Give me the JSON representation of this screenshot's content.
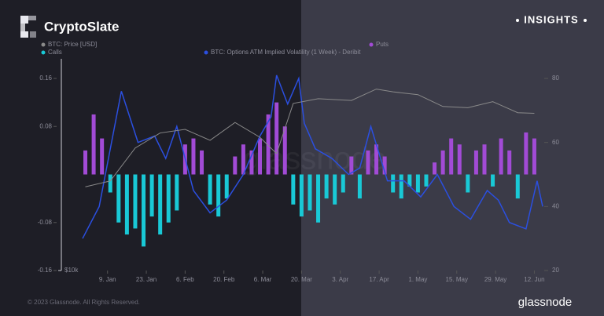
{
  "brand": {
    "name": "CryptoSlate",
    "badge": "INSIGHTS",
    "copyright": "© 2023 Glassnode. All Rights Reserved.",
    "source": "glassnode"
  },
  "chart_data": {
    "type": "bar",
    "x": [
      1,
      4,
      7,
      10,
      13,
      16,
      19,
      22,
      25,
      28,
      31,
      34,
      37,
      40,
      43,
      46,
      49,
      52,
      55,
      58,
      61,
      64,
      67,
      70,
      73,
      76,
      79,
      82,
      85,
      88,
      91,
      94,
      97,
      100,
      103,
      106,
      109,
      112,
      115,
      118,
      121,
      124,
      127,
      130,
      133,
      136,
      139,
      142,
      145,
      148,
      151,
      154,
      157,
      160,
      163
    ],
    "xlim": [
      0,
      166
    ],
    "xticks": [
      {
        "value": 9,
        "label": "9. Jan"
      },
      {
        "value": 23,
        "label": "23. Jan"
      },
      {
        "value": 37,
        "label": "6. Feb"
      },
      {
        "value": 51,
        "label": "20. Feb"
      },
      {
        "value": 65,
        "label": "6. Mar"
      },
      {
        "value": 79,
        "label": "20. Mar"
      },
      {
        "value": 93,
        "label": "3. Apr"
      },
      {
        "value": 107,
        "label": "17. Apr"
      },
      {
        "value": 121,
        "label": "1. May"
      },
      {
        "value": 135,
        "label": "15. May"
      },
      {
        "value": 149,
        "label": "29. May"
      },
      {
        "value": 163,
        "label": "12. Jun"
      }
    ],
    "ylim": [
      -0.16,
      0.16
    ],
    "yticks": [
      -0.16,
      -0.08,
      0.08,
      0.16
    ],
    "y2lim": [
      20,
      80
    ],
    "y2ticks": [
      20,
      40,
      60,
      80
    ],
    "y3lim": [
      10000,
      32000
    ],
    "y3ticks": [
      {
        "value": 10000,
        "label": "$10k"
      }
    ],
    "y3log": true,
    "series": [
      {
        "name": "Puts",
        "color": "#a24bd6",
        "values": [
          0.04,
          0.1,
          0.06,
          null,
          null,
          null,
          null,
          null,
          null,
          null,
          null,
          null,
          0.05,
          0.06,
          0.04,
          null,
          null,
          null,
          0.03,
          0.05,
          0.04,
          0.06,
          0.1,
          0.12,
          0.08,
          null,
          null,
          null,
          null,
          null,
          null,
          null,
          0.03,
          null,
          0.04,
          0.05,
          0.03,
          null,
          null,
          null,
          null,
          null,
          0.02,
          0.04,
          0.06,
          0.05,
          null,
          0.04,
          0.05,
          null,
          0.06,
          0.04,
          null,
          0.07,
          0.06
        ]
      },
      {
        "name": "Calls",
        "color": "#19c9d6",
        "values": [
          null,
          null,
          null,
          -0.03,
          -0.08,
          -0.1,
          -0.09,
          -0.12,
          -0.07,
          -0.1,
          -0.08,
          -0.06,
          null,
          null,
          null,
          -0.05,
          -0.07,
          -0.04,
          null,
          null,
          null,
          null,
          null,
          null,
          null,
          -0.05,
          -0.07,
          -0.06,
          -0.08,
          -0.04,
          -0.05,
          -0.03,
          null,
          -0.04,
          null,
          null,
          null,
          -0.03,
          -0.04,
          -0.02,
          -0.03,
          -0.02,
          null,
          null,
          null,
          null,
          -0.03,
          null,
          null,
          -0.02,
          null,
          null,
          -0.04,
          null,
          null
        ]
      },
      {
        "name": "BTC: Options ATM Implied Volatility (1 Week) - Deribit",
        "color": "#2b4fe0",
        "type": "line",
        "axis": "y2",
        "x": [
          0,
          6,
          14,
          20,
          26,
          30,
          34,
          40,
          46,
          52,
          58,
          64,
          68,
          70,
          74,
          78,
          80,
          84,
          90,
          96,
          100,
          104,
          110,
          116,
          122,
          128,
          134,
          140,
          146,
          150,
          154,
          160,
          164,
          166
        ],
        "values": [
          30,
          40,
          76,
          60,
          62,
          55,
          65,
          45,
          38,
          42,
          50,
          62,
          68,
          81,
          72,
          80,
          66,
          58,
          55,
          50,
          52,
          65,
          48,
          48,
          43,
          50,
          40,
          36,
          45,
          42,
          35,
          33,
          48,
          40
        ]
      },
      {
        "name": "BTC: Price [USD]",
        "color": "#8a8a8a",
        "type": "line",
        "axis": "y3",
        "x": [
          1,
          10,
          19,
          28,
          37,
          46,
          55,
          64,
          70,
          76,
          85,
          97,
          106,
          112,
          121,
          130,
          139,
          148,
          157,
          163
        ],
        "values": [
          16600,
          17200,
          21000,
          23000,
          23500,
          22000,
          24500,
          22400,
          20300,
          27500,
          28300,
          28000,
          30000,
          29500,
          29000,
          27000,
          26800,
          27800,
          26000,
          25900
        ]
      }
    ]
  }
}
